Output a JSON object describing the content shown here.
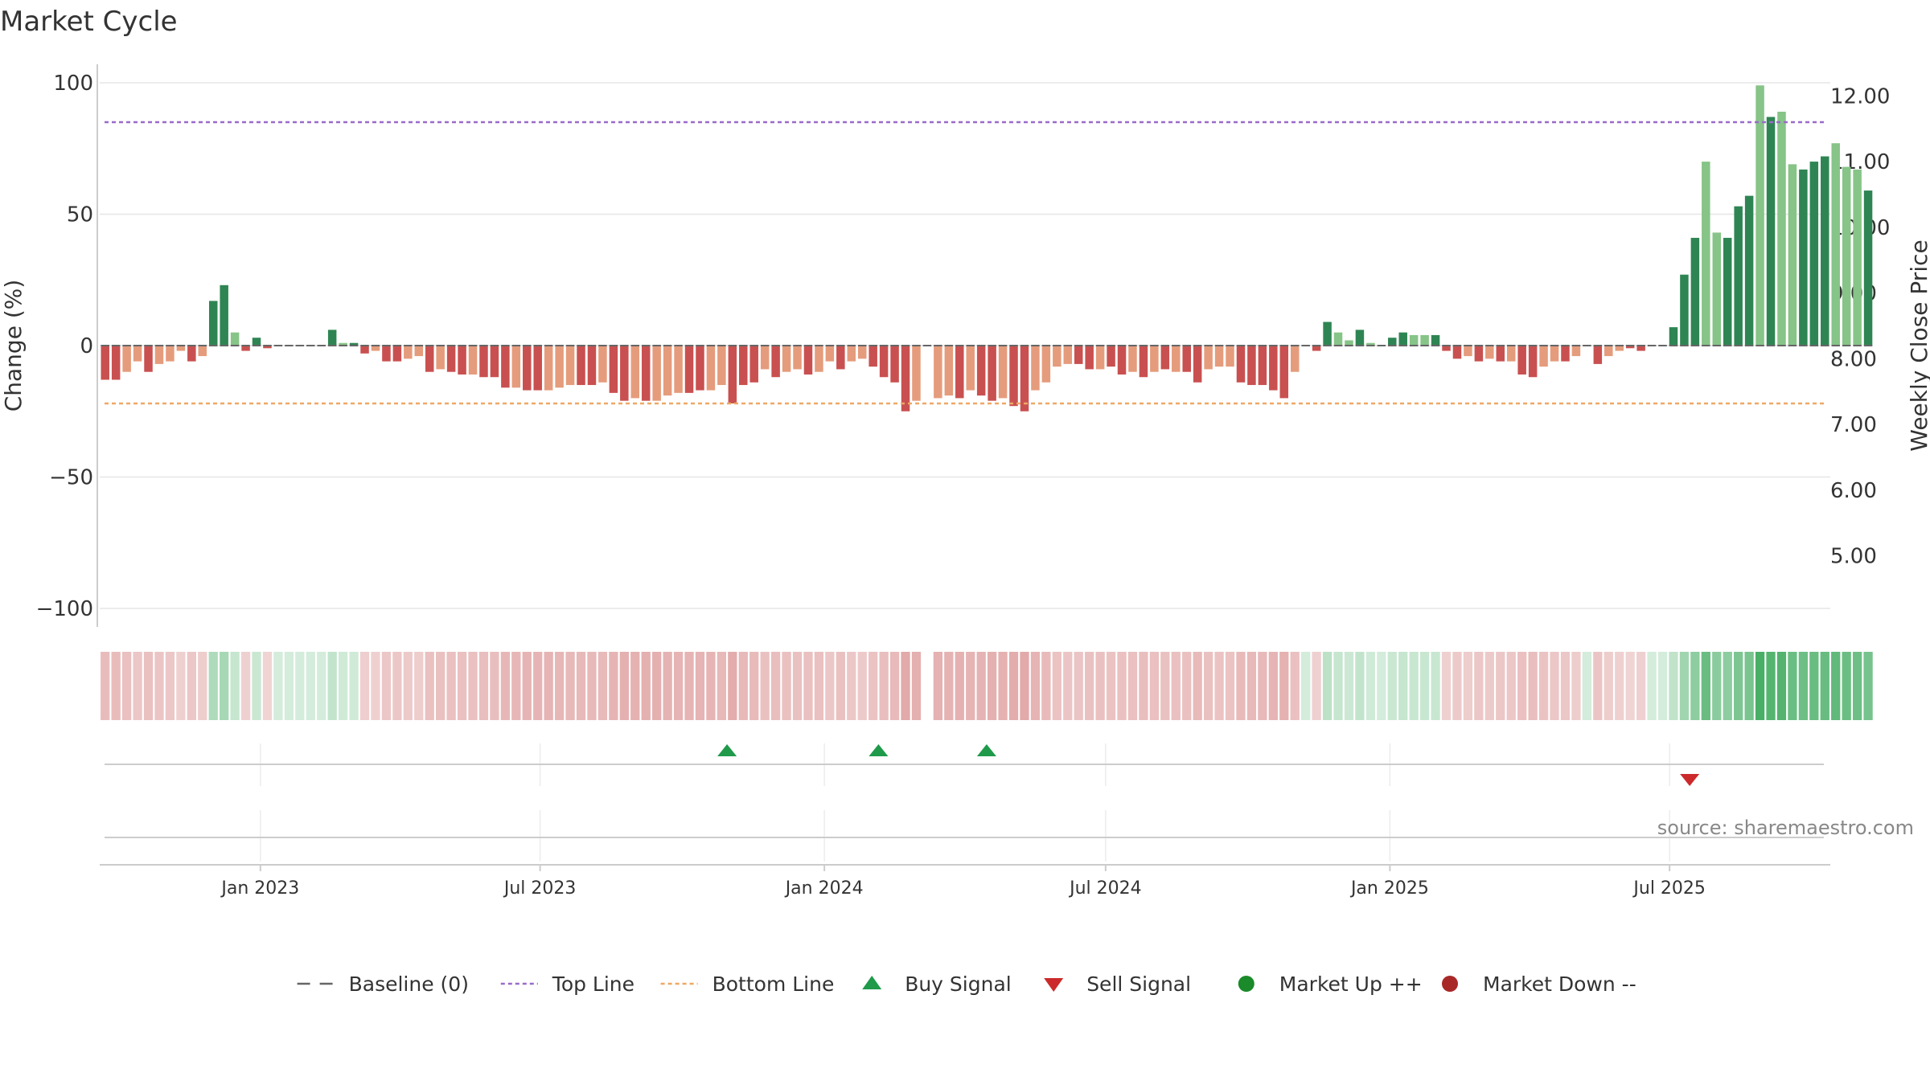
{
  "chart_data": {
    "type": "bar",
    "title": "Market Cycle",
    "ylabel": "Change (%)",
    "y2label": "Weekly Close Price",
    "ylim": [
      -100,
      100
    ],
    "y_ticks": [
      100,
      50,
      0,
      -50,
      -100
    ],
    "y_tick_labels": [
      "100",
      "50",
      "0",
      "−50",
      "−100"
    ],
    "y2lim": [
      4.2,
      12.2
    ],
    "y2_ticks": [
      12,
      11,
      10,
      9,
      8,
      7,
      6,
      5
    ],
    "y2_tick_labels": [
      "12.00",
      "11.00",
      "10.00",
      "9.00",
      "8.00",
      "7.00",
      "6.00",
      "5.00"
    ],
    "x_start": "2022-09-19",
    "x_end": "2025-10-13",
    "x_ticks": [
      {
        "date": "2023-01-01",
        "label": "Jan 2023"
      },
      {
        "date": "2023-07-01",
        "label": "Jul 2023"
      },
      {
        "date": "2024-01-01",
        "label": "Jan 2024"
      },
      {
        "date": "2024-07-01",
        "label": "Jul 2024"
      },
      {
        "date": "2025-01-01",
        "label": "Jan 2025"
      },
      {
        "date": "2025-07-01",
        "label": "Jul 2025"
      }
    ],
    "first_week": "2022-09-19",
    "week_step_days": 7,
    "values": [
      -13,
      -13,
      -10,
      -6,
      -10,
      -7,
      -6,
      -2,
      -6,
      -4,
      17,
      23,
      5,
      -2,
      3,
      -1,
      0,
      0,
      0,
      0,
      0,
      6,
      1,
      1,
      -3,
      -2,
      -6,
      -6,
      -5,
      -4,
      -10,
      -9,
      -10,
      -11,
      -11,
      -12,
      -12,
      -16,
      -16,
      -17,
      -17,
      -17,
      -16,
      -15,
      -15,
      -15,
      -14,
      -18,
      -21,
      -20,
      -21,
      -21,
      -19,
      -18,
      -18,
      -17,
      -17,
      -15,
      -22,
      -15,
      -14,
      -9,
      -12,
      -10,
      -9,
      -11,
      -10,
      -6,
      -9,
      -6,
      -5,
      -8,
      -12,
      -14,
      -25,
      -21,
      0,
      -20,
      -19,
      -20,
      -17,
      -19,
      -21,
      -20,
      -23,
      -25,
      -17,
      -14,
      -8,
      -7,
      -7,
      -9,
      -9,
      -8,
      -11,
      -10,
      -12,
      -10,
      -9,
      -10,
      -10,
      -14,
      -9,
      -8,
      -8,
      -14,
      -15,
      -15,
      -17,
      -20,
      -10,
      0,
      -2,
      9,
      5,
      2,
      6,
      1,
      0,
      3,
      5,
      4,
      4,
      4,
      -2,
      -5,
      -4,
      -6,
      -5,
      -6,
      -6,
      -11,
      -12,
      -8,
      -6,
      -6,
      -4,
      0,
      -7,
      -4,
      -2,
      -1,
      -2,
      0,
      0,
      7,
      27,
      41,
      70,
      43,
      41,
      53,
      57,
      99,
      87,
      89,
      69,
      67,
      70,
      72,
      77,
      68,
      67,
      59
    ],
    "bar_styles": [
      "dark-red",
      "dark-red",
      "light-red",
      "light-red",
      "dark-red",
      "light-red",
      "light-red",
      "light-red",
      "dark-red",
      "light-red",
      "dark-green",
      "dark-green",
      "light-green",
      "dark-red",
      "dark-green",
      "dark-red",
      "dark-green",
      "dark-green",
      "dark-green",
      "dark-green",
      "dark-green",
      "dark-green",
      "light-green",
      "dark-green",
      "dark-red",
      "light-red",
      "dark-red",
      "dark-red",
      "light-red",
      "light-red",
      "dark-red",
      "light-red",
      "dark-red",
      "dark-red",
      "light-red",
      "dark-red",
      "dark-red",
      "dark-red",
      "light-red",
      "dark-red",
      "dark-red",
      "light-red",
      "light-red",
      "light-red",
      "dark-red",
      "dark-red",
      "light-red",
      "dark-red",
      "dark-red",
      "light-red",
      "dark-red",
      "light-red",
      "light-red",
      "light-red",
      "dark-red",
      "dark-red",
      "light-red",
      "light-red",
      "dark-red",
      "dark-red",
      "dark-red",
      "light-red",
      "dark-red",
      "light-red",
      "light-red",
      "dark-red",
      "light-red",
      "light-red",
      "dark-red",
      "light-red",
      "light-red",
      "dark-red",
      "dark-red",
      "dark-red",
      "dark-red",
      "light-red",
      "dark-red",
      "light-red",
      "light-red",
      "dark-red",
      "light-red",
      "dark-red",
      "dark-red",
      "light-red",
      "dark-red",
      "dark-red",
      "light-red",
      "light-red",
      "light-red",
      "light-red",
      "dark-red",
      "dark-red",
      "light-red",
      "dark-red",
      "dark-red",
      "light-red",
      "dark-red",
      "light-red",
      "dark-red",
      "light-red",
      "dark-red",
      "dark-red",
      "light-red",
      "light-red",
      "light-red",
      "dark-red",
      "dark-red",
      "dark-red",
      "dark-red",
      "dark-red",
      "light-red",
      "dark-red",
      "dark-red",
      "dark-green",
      "light-green",
      "light-green",
      "dark-green",
      "light-green",
      "dark-green",
      "dark-green",
      "dark-green",
      "light-green",
      "light-green",
      "dark-green",
      "dark-red",
      "dark-red",
      "light-red",
      "dark-red",
      "light-red",
      "dark-red",
      "light-red",
      "dark-red",
      "dark-red",
      "light-red",
      "light-red",
      "dark-red",
      "light-red",
      "dark-red",
      "dark-red",
      "light-red",
      "light-red",
      "dark-red",
      "dark-red",
      "dark-green",
      "dark-green",
      "dark-green",
      "dark-green",
      "dark-green",
      "light-green",
      "light-green",
      "dark-green",
      "dark-green",
      "dark-green",
      "light-green",
      "dark-green",
      "light-green",
      "light-green",
      "dark-green",
      "dark-green",
      "dark-green",
      "light-green",
      "light-green",
      "light-green"
    ],
    "top_line": 85,
    "bottom_line": -22,
    "buy_signals": [
      "2023-10-30",
      "2024-02-05",
      "2024-04-15"
    ],
    "sell_signals": [
      "2025-07-14"
    ],
    "market_up_points": [],
    "market_down_points": [],
    "grid": true,
    "legend_position": "bottom",
    "legend": [
      {
        "key": "baseline",
        "label": "Baseline (0)"
      },
      {
        "key": "top",
        "label": "Top Line"
      },
      {
        "key": "bottom",
        "label": "Bottom Line"
      },
      {
        "key": "buy",
        "label": "Buy Signal"
      },
      {
        "key": "sell",
        "label": "Sell Signal"
      },
      {
        "key": "up",
        "label": "Market Up ++"
      },
      {
        "key": "down",
        "label": "Market Down --"
      }
    ],
    "source_note": "source: sharemaestro.com",
    "colors": {
      "dark-red": "#c95050",
      "light-red": "#e59c7c",
      "dark-green": "#2e8553",
      "light-green": "#86c487",
      "top_line": "#9a6bc9",
      "bottom_line": "#eea866",
      "baseline": "#666666",
      "buy": "#1f9a4a",
      "sell": "#cc2a2a",
      "up": "#1a8a2a",
      "down": "#a82828",
      "grid": "#e6e6e6",
      "axis": "#cccccc",
      "text": "#333333"
    }
  }
}
